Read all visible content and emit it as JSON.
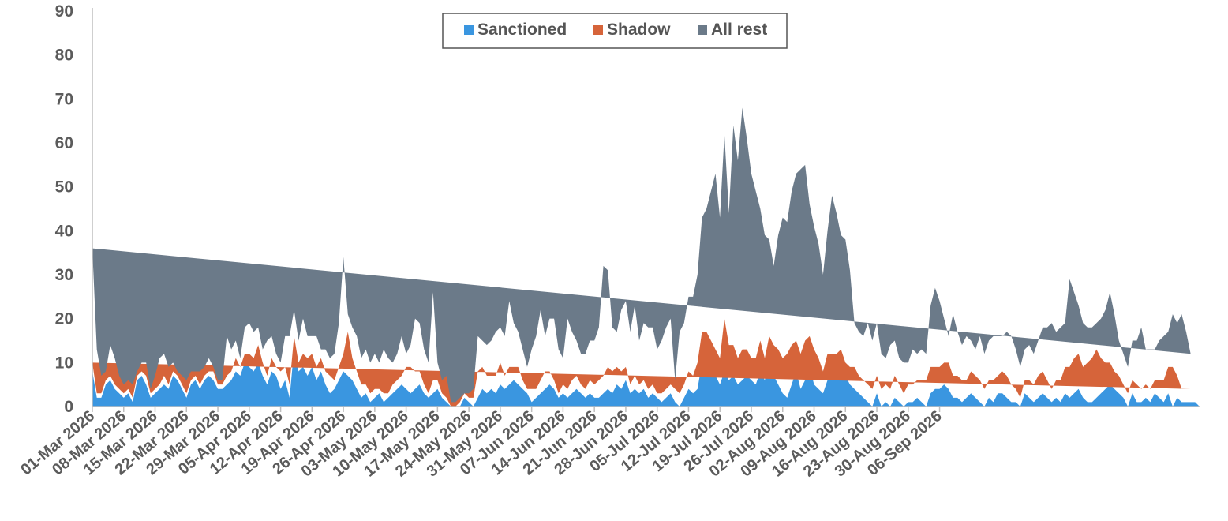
{
  "chart_data": {
    "type": "area",
    "stacked": true,
    "title": "",
    "xlabel": "",
    "ylabel": "",
    "ylim": [
      0,
      90
    ],
    "yticks": [
      0,
      10,
      20,
      30,
      40,
      50,
      60,
      70,
      80,
      90
    ],
    "grid": false,
    "legend_position": "top-center",
    "x_start": "01-Mar 2026",
    "x_labels": [
      "01-Mar 2026",
      "08-Mar 2026",
      "15-Mar 2026",
      "22-Mar 2026",
      "29-Mar 2026",
      "05-Apr 2026",
      "12-Apr 2026",
      "19-Apr 2026",
      "26-Apr 2026",
      "03-May 2026",
      "10-May 2026",
      "17-May 2026",
      "24-May 2026",
      "31-May 2026",
      "07-Jun 2026",
      "14-Jun 2026",
      "21-Jun 2026",
      "28-Jun 2026",
      "05-Jul 2026",
      "12-Jul 2026",
      "19-Jul 2026",
      "26-Jul 2026",
      "02-Aug 2026",
      "09-Aug 2026",
      "16-Aug 2026",
      "23-Aug 2026",
      "30-Aug 2026",
      "06-Sep 2026"
    ],
    "series": [
      {
        "name": "Sanctioned",
        "color": "#3a96e0",
        "values": [
          8,
          2,
          2,
          5,
          6,
          4,
          3,
          2,
          3,
          1,
          6,
          7,
          5,
          2,
          3,
          4,
          5,
          4,
          7,
          6,
          4,
          2,
          5,
          6,
          4,
          6,
          7,
          6,
          4,
          4,
          5,
          6,
          8,
          7,
          10,
          9,
          8,
          10,
          7,
          5,
          8,
          7,
          4,
          6,
          2,
          13,
          8,
          9,
          7,
          9,
          6,
          8,
          5,
          3,
          4,
          6,
          8,
          7,
          6,
          4,
          2,
          3,
          1,
          2,
          3,
          1,
          2,
          3,
          4,
          5,
          4,
          3,
          4,
          5,
          3,
          2,
          3,
          4,
          2,
          1,
          0,
          0,
          0,
          2,
          1,
          0,
          2,
          4,
          3,
          4,
          3,
          5,
          4,
          5,
          6,
          5,
          4,
          3,
          1,
          2,
          3,
          4,
          5,
          4,
          2,
          3,
          2,
          3,
          4,
          3,
          2,
          3,
          2,
          2,
          3,
          4,
          3,
          5,
          4,
          6,
          3,
          4,
          3,
          4,
          2,
          3,
          2,
          1,
          2,
          3,
          1,
          0,
          2,
          4,
          3,
          4,
          10,
          9,
          8,
          7,
          5,
          8,
          6,
          7,
          5,
          6,
          7,
          6,
          5,
          8,
          6,
          10,
          7,
          5,
          3,
          2,
          5,
          8,
          4,
          6,
          9,
          5,
          4,
          3,
          6,
          8,
          9,
          10,
          7,
          5,
          4,
          3,
          2,
          1,
          0,
          3,
          0,
          1,
          0,
          2,
          1,
          0,
          1,
          1,
          2,
          1,
          0,
          3,
          4,
          4,
          5,
          4,
          2,
          2,
          1,
          2,
          3,
          2,
          1,
          0,
          2,
          1,
          3,
          3,
          2,
          1,
          1,
          0,
          3,
          2,
          1,
          2,
          3,
          2,
          1,
          2,
          1,
          3,
          2,
          3,
          4,
          2,
          1,
          1,
          2,
          3,
          4,
          5,
          4,
          3,
          2,
          0,
          3,
          1,
          1,
          2,
          1,
          3,
          2,
          1,
          3,
          0,
          2,
          1,
          1,
          1,
          1,
          0
        ]
      },
      {
        "name": "Shadow",
        "color": "#d6643a",
        "values": [
          2,
          1,
          1,
          1,
          1,
          1,
          1,
          1,
          1,
          1,
          1,
          1,
          2,
          1,
          1,
          1,
          2,
          1,
          1,
          1,
          1,
          1,
          1,
          1,
          1,
          1,
          1,
          2,
          1,
          1,
          2,
          2,
          3,
          2,
          2,
          3,
          3,
          4,
          3,
          2,
          3,
          2,
          4,
          3,
          3,
          3,
          2,
          3,
          4,
          3,
          3,
          3,
          3,
          4,
          2,
          3,
          4,
          10,
          5,
          4,
          3,
          2,
          2,
          2,
          1,
          2,
          1,
          2,
          2,
          2,
          5,
          6,
          4,
          3,
          2,
          1,
          3,
          2,
          1,
          1,
          0,
          0,
          1,
          1,
          1,
          2,
          6,
          5,
          4,
          3,
          4,
          5,
          3,
          4,
          3,
          4,
          2,
          1,
          3,
          2,
          3,
          4,
          3,
          2,
          1,
          2,
          2,
          3,
          3,
          2,
          2,
          3,
          3,
          4,
          4,
          5,
          5,
          4,
          4,
          3,
          2,
          3,
          2,
          2,
          2,
          2,
          1,
          2,
          2,
          2,
          3,
          3,
          3,
          4,
          4,
          6,
          7,
          8,
          7,
          6,
          6,
          12,
          8,
          7,
          6,
          7,
          6,
          5,
          6,
          7,
          5,
          6,
          7,
          8,
          8,
          10,
          9,
          7,
          8,
          9,
          7,
          8,
          7,
          5,
          6,
          4,
          3,
          3,
          3,
          4,
          5,
          4,
          4,
          4,
          4,
          4,
          4,
          4,
          4,
          5,
          4,
          3,
          4,
          4,
          4,
          5,
          6,
          6,
          5,
          5,
          5,
          6,
          5,
          5,
          5,
          4,
          5,
          5,
          5,
          4,
          4,
          5,
          4,
          5,
          5,
          4,
          3,
          2,
          3,
          4,
          4,
          5,
          5,
          4,
          3,
          4,
          5,
          6,
          7,
          8,
          8,
          7,
          9,
          10,
          11,
          8,
          6,
          5,
          4,
          4,
          3,
          3,
          3,
          4,
          3,
          3,
          3,
          3,
          4,
          5,
          6,
          9,
          5,
          3,
          3,
          3
        ]
      },
      {
        "name": "All rest",
        "color": "#6b7a89",
        "values": [
          26,
          10,
          4,
          2,
          7,
          6,
          3,
          2,
          2,
          3,
          1,
          2,
          3,
          1,
          3,
          6,
          5,
          4,
          2,
          1,
          2,
          3,
          2,
          1,
          3,
          2,
          3,
          1,
          1,
          1,
          9,
          5,
          4,
          2,
          6,
          7,
          6,
          4,
          3,
          8,
          5,
          3,
          2,
          7,
          11,
          6,
          5,
          8,
          5,
          4,
          7,
          2,
          5,
          4,
          6,
          10,
          22,
          4,
          7,
          8,
          6,
          8,
          7,
          8,
          6,
          10,
          8,
          5,
          6,
          9,
          3,
          5,
          12,
          11,
          8,
          7,
          20,
          4,
          3,
          5,
          1,
          1,
          1,
          0,
          1,
          2,
          8,
          6,
          7,
          8,
          10,
          8,
          9,
          15,
          10,
          8,
          7,
          5,
          9,
          12,
          16,
          8,
          12,
          14,
          10,
          6,
          16,
          11,
          8,
          7,
          8,
          9,
          10,
          12,
          25,
          22,
          10,
          8,
          14,
          15,
          12,
          16,
          10,
          13,
          14,
          13,
          10,
          12,
          14,
          15,
          2,
          14,
          14,
          17,
          18,
          20,
          26,
          28,
          34,
          40,
          32,
          42,
          30,
          50,
          45,
          55,
          48,
          42,
          38,
          30,
          28,
          22,
          18,
          26,
          32,
          30,
          35,
          38,
          42,
          40,
          30,
          28,
          26,
          22,
          28,
          36,
          32,
          26,
          28,
          22,
          10,
          10,
          10,
          14,
          11,
          12,
          8,
          6,
          10,
          8,
          6,
          7,
          5,
          8,
          6,
          7,
          6,
          14,
          18,
          15,
          10,
          6,
          14,
          10,
          8,
          10,
          7,
          6,
          10,
          8,
          9,
          10,
          9,
          8,
          10,
          11,
          9,
          7,
          7,
          8,
          7,
          8,
          10,
          12,
          15,
          11,
          12,
          10,
          20,
          15,
          11,
          10,
          8,
          7,
          6,
          9,
          12,
          16,
          13,
          8,
          7,
          6,
          9,
          10,
          14,
          8,
          9,
          7,
          9,
          10,
          8,
          12,
          12,
          17,
          13,
          8,
          5,
          4
        ]
      }
    ]
  }
}
